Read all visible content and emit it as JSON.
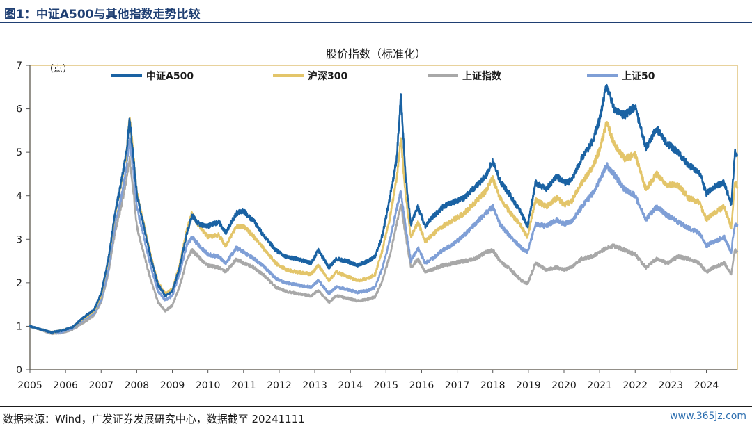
{
  "header": {
    "figure_title": "图1：中证A500与其他指数走势比较"
  },
  "footer": {
    "source": "数据来源：Wind，广发证券发展研究中心，数据截至 20241111",
    "watermark": "www.365jz.com"
  },
  "chart_data": {
    "type": "line",
    "title": "股价指数（标准化）",
    "unit_label": "（点）",
    "xlabel": "",
    "ylabel": "",
    "xlim": [
      2005.0,
      2024.87
    ],
    "ylim": [
      0,
      7
    ],
    "y_ticks": [
      "0",
      "1",
      "2",
      "3",
      "4",
      "5",
      "6",
      "7"
    ],
    "x_ticks": [
      "2005",
      "2006",
      "2007",
      "2008",
      "2009",
      "2010",
      "2011",
      "2012",
      "2013",
      "2014",
      "2015",
      "2016",
      "2017",
      "2018",
      "2019",
      "2020",
      "2021",
      "2022",
      "2023",
      "2024"
    ],
    "grid": false,
    "legend_position": "top",
    "series": [
      {
        "name": "上证指数",
        "color": "#a8a8a8",
        "x": [
          2005.0,
          2005.3,
          2005.6,
          2005.9,
          2006.2,
          2006.5,
          2006.8,
          2007.0,
          2007.2,
          2007.4,
          2007.55,
          2007.7,
          2007.8,
          2007.9,
          2008.0,
          2008.2,
          2008.4,
          2008.6,
          2008.8,
          2009.0,
          2009.2,
          2009.4,
          2009.55,
          2009.75,
          2010.0,
          2010.3,
          2010.5,
          2010.8,
          2011.0,
          2011.3,
          2011.6,
          2011.9,
          2012.2,
          2012.5,
          2012.9,
          2013.1,
          2013.4,
          2013.6,
          2013.9,
          2014.2,
          2014.5,
          2014.7,
          2014.9,
          2015.1,
          2015.3,
          2015.42,
          2015.55,
          2015.7,
          2015.9,
          2016.1,
          2016.3,
          2016.6,
          2016.9,
          2017.2,
          2017.5,
          2017.8,
          2018.0,
          2018.2,
          2018.5,
          2018.8,
          2018.98,
          2019.2,
          2019.5,
          2019.8,
          2020.0,
          2020.2,
          2020.5,
          2020.8,
          2021.0,
          2021.2,
          2021.4,
          2021.7,
          2022.0,
          2022.3,
          2022.6,
          2022.9,
          2023.2,
          2023.5,
          2023.8,
          2024.0,
          2024.2,
          2024.5,
          2024.7,
          2024.75,
          2024.8,
          2024.87
        ],
        "values": [
          1.0,
          0.92,
          0.83,
          0.85,
          0.92,
          1.08,
          1.25,
          1.55,
          2.2,
          3.2,
          3.7,
          4.3,
          4.85,
          4.15,
          3.3,
          2.65,
          2.05,
          1.55,
          1.35,
          1.48,
          1.9,
          2.5,
          2.75,
          2.58,
          2.4,
          2.35,
          2.25,
          2.55,
          2.45,
          2.35,
          2.15,
          1.9,
          1.8,
          1.75,
          1.7,
          1.82,
          1.55,
          1.7,
          1.65,
          1.58,
          1.62,
          1.68,
          2.05,
          2.6,
          3.35,
          3.8,
          3.1,
          2.35,
          2.55,
          2.25,
          2.3,
          2.4,
          2.45,
          2.5,
          2.55,
          2.7,
          2.75,
          2.5,
          2.3,
          2.05,
          1.98,
          2.45,
          2.3,
          2.35,
          2.3,
          2.35,
          2.55,
          2.6,
          2.7,
          2.8,
          2.85,
          2.75,
          2.65,
          2.35,
          2.55,
          2.45,
          2.6,
          2.55,
          2.45,
          2.25,
          2.35,
          2.45,
          2.2,
          2.5,
          2.75,
          2.7
        ]
      },
      {
        "name": "上证50",
        "color": "#7f9fd6",
        "x": [
          2005.0,
          2005.3,
          2005.6,
          2005.9,
          2006.2,
          2006.5,
          2006.8,
          2007.0,
          2007.2,
          2007.4,
          2007.55,
          2007.7,
          2007.8,
          2007.9,
          2008.0,
          2008.2,
          2008.4,
          2008.6,
          2008.8,
          2009.0,
          2009.2,
          2009.4,
          2009.55,
          2009.75,
          2010.0,
          2010.3,
          2010.5,
          2010.8,
          2011.0,
          2011.3,
          2011.6,
          2011.9,
          2012.2,
          2012.5,
          2012.9,
          2013.1,
          2013.4,
          2013.6,
          2013.9,
          2014.2,
          2014.5,
          2014.7,
          2014.9,
          2015.1,
          2015.3,
          2015.42,
          2015.55,
          2015.7,
          2015.9,
          2016.1,
          2016.3,
          2016.6,
          2016.9,
          2017.2,
          2017.5,
          2017.8,
          2018.0,
          2018.2,
          2018.5,
          2018.8,
          2018.98,
          2019.2,
          2019.5,
          2019.8,
          2020.0,
          2020.2,
          2020.5,
          2020.8,
          2021.0,
          2021.2,
          2021.4,
          2021.7,
          2022.0,
          2022.3,
          2022.6,
          2022.9,
          2023.2,
          2023.5,
          2023.8,
          2024.0,
          2024.2,
          2024.5,
          2024.7,
          2024.75,
          2024.8,
          2024.87
        ],
        "values": [
          1.0,
          0.93,
          0.85,
          0.87,
          0.95,
          1.15,
          1.3,
          1.6,
          2.3,
          3.4,
          3.9,
          4.6,
          5.3,
          4.6,
          3.75,
          3.05,
          2.35,
          1.8,
          1.6,
          1.7,
          2.2,
          2.85,
          3.05,
          2.85,
          2.65,
          2.6,
          2.45,
          2.8,
          2.7,
          2.55,
          2.35,
          2.1,
          2.0,
          1.95,
          1.9,
          2.05,
          1.75,
          1.9,
          1.85,
          1.78,
          1.82,
          1.9,
          2.35,
          2.95,
          3.7,
          4.1,
          3.3,
          2.5,
          2.8,
          2.45,
          2.55,
          2.75,
          2.9,
          3.1,
          3.35,
          3.6,
          3.75,
          3.35,
          3.05,
          2.8,
          2.7,
          3.35,
          3.3,
          3.45,
          3.35,
          3.4,
          3.75,
          4.05,
          4.35,
          4.7,
          4.5,
          4.15,
          4.0,
          3.45,
          3.75,
          3.55,
          3.4,
          3.25,
          3.15,
          2.85,
          2.95,
          3.05,
          2.7,
          3.05,
          3.35,
          3.35
        ]
      },
      {
        "name": "沪深300",
        "color": "#e3c56a",
        "x": [
          2005.0,
          2005.3,
          2005.6,
          2005.9,
          2006.2,
          2006.5,
          2006.8,
          2007.0,
          2007.2,
          2007.4,
          2007.55,
          2007.7,
          2007.8,
          2007.9,
          2008.0,
          2008.2,
          2008.4,
          2008.6,
          2008.8,
          2009.0,
          2009.2,
          2009.4,
          2009.55,
          2009.75,
          2010.0,
          2010.3,
          2010.5,
          2010.8,
          2011.0,
          2011.3,
          2011.6,
          2011.9,
          2012.2,
          2012.5,
          2012.9,
          2013.1,
          2013.4,
          2013.6,
          2013.9,
          2014.2,
          2014.5,
          2014.7,
          2014.9,
          2015.1,
          2015.3,
          2015.42,
          2015.55,
          2015.7,
          2015.9,
          2016.1,
          2016.3,
          2016.6,
          2016.9,
          2017.2,
          2017.5,
          2017.8,
          2018.0,
          2018.2,
          2018.5,
          2018.8,
          2018.98,
          2019.2,
          2019.5,
          2019.8,
          2020.0,
          2020.2,
          2020.5,
          2020.8,
          2021.0,
          2021.2,
          2021.4,
          2021.7,
          2022.0,
          2022.3,
          2022.6,
          2022.9,
          2023.2,
          2023.5,
          2023.8,
          2024.0,
          2024.2,
          2024.5,
          2024.7,
          2024.75,
          2024.8,
          2024.87
        ],
        "values": [
          1.0,
          0.93,
          0.86,
          0.9,
          0.98,
          1.18,
          1.35,
          1.7,
          2.5,
          3.6,
          4.2,
          4.9,
          5.85,
          5.0,
          4.1,
          3.35,
          2.6,
          2.0,
          1.75,
          1.85,
          2.4,
          3.2,
          3.6,
          3.3,
          3.05,
          3.1,
          2.85,
          3.3,
          3.3,
          3.05,
          2.75,
          2.45,
          2.3,
          2.25,
          2.2,
          2.4,
          2.05,
          2.25,
          2.15,
          2.05,
          2.1,
          2.2,
          2.75,
          3.45,
          4.4,
          5.3,
          4.0,
          3.05,
          3.4,
          2.95,
          3.1,
          3.3,
          3.45,
          3.6,
          3.85,
          4.1,
          4.4,
          3.95,
          3.6,
          3.3,
          3.05,
          3.9,
          3.75,
          3.95,
          3.8,
          3.85,
          4.3,
          4.65,
          5.05,
          5.7,
          5.2,
          4.85,
          4.95,
          4.15,
          4.5,
          4.25,
          4.25,
          3.95,
          3.85,
          3.45,
          3.6,
          3.75,
          3.25,
          3.8,
          4.3,
          4.2
        ]
      },
      {
        "name": "中证A500",
        "color": "#1a62a3",
        "x": [
          2005.0,
          2005.3,
          2005.6,
          2005.9,
          2006.2,
          2006.5,
          2006.8,
          2007.0,
          2007.2,
          2007.4,
          2007.55,
          2007.7,
          2007.8,
          2007.9,
          2008.0,
          2008.2,
          2008.4,
          2008.6,
          2008.8,
          2009.0,
          2009.2,
          2009.4,
          2009.55,
          2009.75,
          2010.0,
          2010.3,
          2010.5,
          2010.8,
          2011.0,
          2011.3,
          2011.6,
          2011.9,
          2012.2,
          2012.5,
          2012.9,
          2013.1,
          2013.4,
          2013.6,
          2013.9,
          2014.2,
          2014.5,
          2014.7,
          2014.9,
          2015.1,
          2015.3,
          2015.42,
          2015.55,
          2015.7,
          2015.9,
          2016.1,
          2016.3,
          2016.6,
          2016.9,
          2017.2,
          2017.5,
          2017.8,
          2018.0,
          2018.2,
          2018.5,
          2018.8,
          2018.98,
          2019.2,
          2019.5,
          2019.8,
          2020.0,
          2020.2,
          2020.5,
          2020.8,
          2021.0,
          2021.2,
          2021.4,
          2021.7,
          2022.0,
          2022.3,
          2022.6,
          2022.9,
          2023.2,
          2023.5,
          2023.8,
          2024.0,
          2024.2,
          2024.5,
          2024.7,
          2024.75,
          2024.8,
          2024.87
        ],
        "values": [
          1.0,
          0.93,
          0.86,
          0.9,
          0.98,
          1.2,
          1.38,
          1.75,
          2.55,
          3.65,
          4.25,
          4.95,
          5.75,
          4.95,
          4.05,
          3.3,
          2.55,
          1.95,
          1.7,
          1.8,
          2.35,
          3.1,
          3.55,
          3.35,
          3.3,
          3.4,
          3.15,
          3.6,
          3.65,
          3.4,
          3.05,
          2.75,
          2.6,
          2.55,
          2.45,
          2.75,
          2.35,
          2.55,
          2.5,
          2.4,
          2.5,
          2.6,
          3.1,
          3.9,
          4.85,
          6.3,
          4.45,
          3.35,
          3.75,
          3.3,
          3.5,
          3.75,
          3.85,
          3.95,
          4.2,
          4.45,
          4.8,
          4.35,
          4.0,
          3.6,
          3.3,
          4.3,
          4.15,
          4.45,
          4.3,
          4.35,
          4.85,
          5.25,
          5.75,
          6.55,
          6.0,
          5.85,
          6.05,
          5.1,
          5.55,
          5.2,
          5.0,
          4.7,
          4.55,
          4.05,
          4.2,
          4.3,
          3.8,
          4.4,
          5.0,
          4.9
        ]
      }
    ]
  }
}
